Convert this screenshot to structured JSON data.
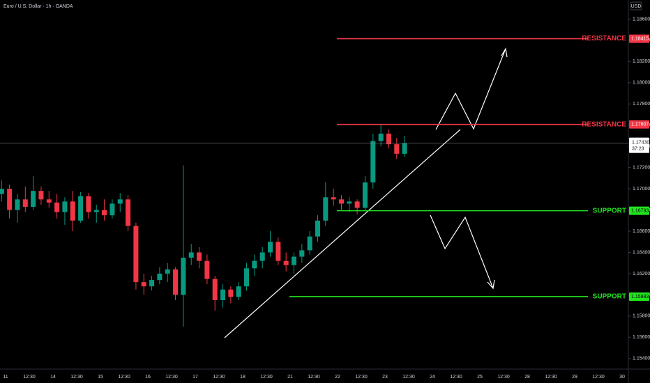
{
  "chart_data": {
    "type": "candlestick",
    "title": "Euro / U.S. Dollar · 1h · OANDA",
    "currency_button": "USD",
    "up_color": "#089981",
    "down_color": "#f23645",
    "open": [
      1.1695,
      1.17,
      1.168,
      1.169,
      1.1683,
      1.1698,
      1.169,
      1.1687,
      1.1678,
      1.1688,
      1.167,
      1.1693,
      1.1678,
      1.168,
      1.1675,
      1.1686,
      1.169,
      1.1665,
      1.1612,
      1.1608,
      1.1614,
      1.162,
      1.1624,
      1.16,
      1.1635,
      1.164,
      1.1632,
      1.1615,
      1.1595,
      1.1605,
      1.1598,
      1.1608,
      1.1625,
      1.1632,
      1.164,
      1.165,
      1.1632,
      1.1628,
      1.1636,
      1.1642,
      1.1655,
      1.167,
      1.1692,
      1.169,
      1.1686,
      1.1688,
      1.1682,
      1.1706,
      1.1745,
      1.1752,
      1.1742,
      1.1733
    ],
    "high": [
      1.1708,
      1.1704,
      1.1695,
      1.1702,
      1.1712,
      1.1702,
      1.1698,
      1.1695,
      1.1692,
      1.1698,
      1.1697,
      1.1696,
      1.1685,
      1.169,
      1.169,
      1.1696,
      1.1694,
      1.1668,
      1.162,
      1.1618,
      1.1626,
      1.163,
      1.1626,
      1.1722,
      1.1648,
      1.1645,
      1.1638,
      1.1618,
      1.161,
      1.1608,
      1.1612,
      1.163,
      1.1638,
      1.1645,
      1.166,
      1.1654,
      1.164,
      1.164,
      1.1648,
      1.166,
      1.1675,
      1.1706,
      1.17,
      1.1694,
      1.1692,
      1.169,
      1.1712,
      1.1752,
      1.1761,
      1.1756,
      1.1748,
      1.175
    ],
    "low": [
      1.1688,
      1.1672,
      1.1668,
      1.1678,
      1.168,
      1.1685,
      1.1682,
      1.1672,
      1.1666,
      1.166,
      1.1668,
      1.1672,
      1.1668,
      1.167,
      1.1672,
      1.1678,
      1.166,
      1.1605,
      1.16,
      1.1604,
      1.161,
      1.1612,
      1.1595,
      1.157,
      1.1628,
      1.1625,
      1.161,
      1.1585,
      1.1588,
      1.1592,
      1.1595,
      1.1604,
      1.1618,
      1.1625,
      1.1636,
      1.1628,
      1.1622,
      1.162,
      1.163,
      1.1638,
      1.165,
      1.1665,
      1.1684,
      1.168,
      1.1678,
      1.1676,
      1.168,
      1.17,
      1.174,
      1.1738,
      1.1728,
      1.173
    ],
    "close": [
      1.17,
      1.168,
      1.169,
      1.1683,
      1.1698,
      1.169,
      1.1687,
      1.1678,
      1.1688,
      1.167,
      1.1693,
      1.1678,
      1.168,
      1.1675,
      1.1686,
      1.169,
      1.1665,
      1.1612,
      1.1608,
      1.1614,
      1.162,
      1.1624,
      1.16,
      1.1635,
      1.164,
      1.1632,
      1.1615,
      1.1595,
      1.1605,
      1.1598,
      1.1608,
      1.1625,
      1.1632,
      1.164,
      1.165,
      1.1632,
      1.1628,
      1.1636,
      1.1642,
      1.1655,
      1.167,
      1.1692,
      1.169,
      1.1686,
      1.1688,
      1.1682,
      1.1706,
      1.1745,
      1.1752,
      1.1742,
      1.1733,
      1.1743
    ],
    "ylim": [
      1.153,
      1.1878
    ],
    "yticks": [
      {
        "value": 1.186,
        "label": "1.18600"
      },
      {
        "value": 1.184,
        "label": "1.18400"
      },
      {
        "value": 1.182,
        "label": "1.18200"
      },
      {
        "value": 1.18,
        "label": "1.18000"
      },
      {
        "value": 1.178,
        "label": "1.17800"
      },
      {
        "value": 1.176,
        "label": "1.17600"
      },
      {
        "value": 1.174,
        "label": "1.17400"
      },
      {
        "value": 1.172,
        "label": "1.17200"
      },
      {
        "value": 1.17,
        "label": "1.17000"
      },
      {
        "value": 1.168,
        "label": "1.16800"
      },
      {
        "value": 1.166,
        "label": "1.16600"
      },
      {
        "value": 1.164,
        "label": "1.16400"
      },
      {
        "value": 1.162,
        "label": "1.16200"
      },
      {
        "value": 1.16,
        "label": "1.16000"
      },
      {
        "value": 1.158,
        "label": "1.15800"
      },
      {
        "value": 1.156,
        "label": "1.15600"
      },
      {
        "value": 1.154,
        "label": "1.15400"
      }
    ],
    "xtick_labels": [
      "11",
      "12:30",
      "14",
      "12:30",
      "15",
      "12:30",
      "16",
      "12:30",
      "17",
      "12:30",
      "18",
      "12:30",
      "21",
      "12:30",
      "22",
      "12:30",
      "23",
      "12:30",
      "24",
      "12:30",
      "25",
      "12:30",
      "28",
      "12:30",
      "29",
      "12:30",
      "30"
    ],
    "last_price": {
      "value": 1.1743,
      "label": "1.17430"
    },
    "countdown": "37:23",
    "levels": [
      {
        "name": "RESISTANCE",
        "value": 1.18415,
        "color": "#f23645"
      },
      {
        "name": "RESISTANCE",
        "value": 1.17607,
        "color": "#f23645"
      },
      {
        "name": "SUPPORT",
        "value": 1.16793,
        "color": "#22e51f"
      },
      {
        "name": "SUPPORT",
        "value": 1.15983,
        "color": "#22e51f"
      }
    ]
  }
}
